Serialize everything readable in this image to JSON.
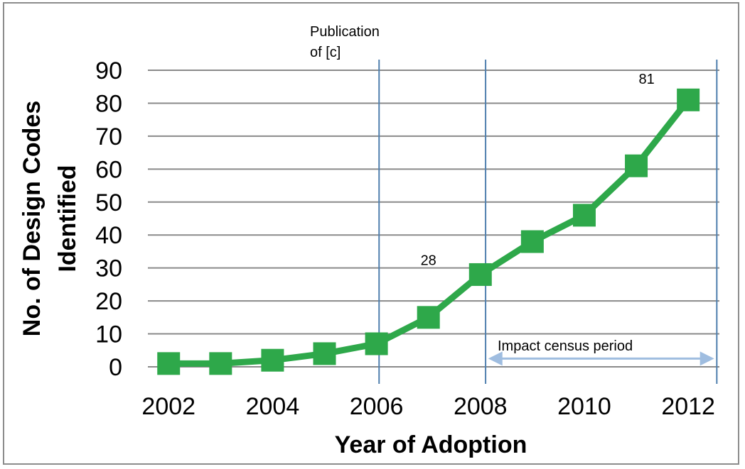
{
  "chart_data": {
    "type": "line",
    "title": "",
    "xlabel": "Year of Adoption",
    "ylabel": "No. of Design Codes Identified",
    "ylabel_lines": [
      "No. of Design Codes",
      "Identified"
    ],
    "x": [
      2002,
      2003,
      2004,
      2005,
      2006,
      2007,
      2008,
      2009,
      2010,
      2011,
      2012
    ],
    "series": [
      {
        "values": [
          1,
          1,
          2,
          4,
          7,
          15,
          28,
          38,
          46,
          61,
          81
        ]
      }
    ],
    "xticks": [
      "2002",
      "2004",
      "2006",
      "2008",
      "2010",
      "2012"
    ],
    "yticks": [
      "0",
      "10",
      "20",
      "30",
      "40",
      "50",
      "60",
      "70",
      "80",
      "90"
    ],
    "ylim": [
      0,
      90
    ],
    "xlim": [
      2001.6,
      2012.6
    ],
    "grid": "horizontal",
    "legend": "none",
    "line_color": "#2ea84a",
    "vline_color": "#4f7fae",
    "arrow_color": "#9fbde0",
    "vlines": [
      2006.05,
      2008.1,
      2012.55
    ],
    "data_labels": [
      {
        "x": 2007.0,
        "y": 30,
        "text": "28"
      },
      {
        "x": 2011.2,
        "y": 85,
        "text": "81"
      }
    ],
    "annotations": {
      "publication_line1": "Publication",
      "publication_line2": "of [c]",
      "census": "Impact census period"
    },
    "census_arrow": {
      "from": 2008.15,
      "to": 2012.5,
      "y": 2.5
    }
  }
}
